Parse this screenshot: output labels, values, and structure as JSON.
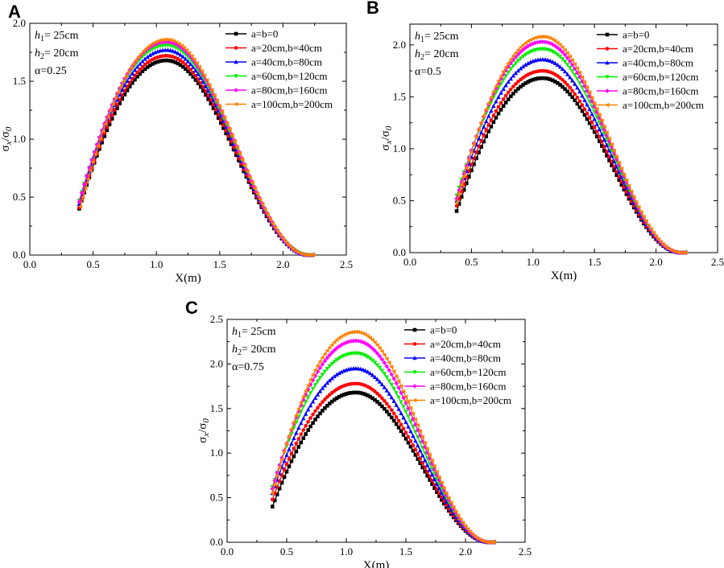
{
  "chart_data": [
    {
      "type": "line",
      "panel_label": "A",
      "xlabel": "X(m)",
      "ylabel_main": "σ",
      "ylabel_sub1": "x",
      "ylabel_mid": "/σ",
      "ylabel_sub2": "0",
      "xlim": [
        0,
        2.5
      ],
      "ylim": [
        0,
        2.0
      ],
      "xticks": [
        "0.0",
        "0.5",
        "1.0",
        "1.5",
        "2.0",
        "2.5"
      ],
      "yticks": [
        "0.0",
        "0.5",
        "1.0",
        "1.5",
        "2.0"
      ],
      "annotations": [
        {
          "var": "h",
          "sub": "1",
          "text": "= 25cm"
        },
        {
          "var": "h",
          "sub": "2",
          "text": "= 20cm"
        },
        {
          "var": "",
          "sub": "",
          "text": "α=0.25"
        }
      ],
      "legend_position": "top-right",
      "series": [
        {
          "name": "a=b=0",
          "color": "#000000",
          "marker": "square",
          "x_start": 0.39,
          "y_start": 0.4,
          "peak": 1.68
        },
        {
          "name": "a=20cm,b=40cm",
          "color": "#ff0000",
          "marker": "circle",
          "x_start": 0.39,
          "y_start": 0.41,
          "peak": 1.72
        },
        {
          "name": "a=40cm,b=80cm",
          "color": "#0000ff",
          "marker": "triangle",
          "x_start": 0.39,
          "y_start": 0.44,
          "peak": 1.77
        },
        {
          "name": "a=60cm,b=120cm",
          "color": "#00ee00",
          "marker": "triangle-down",
          "x_start": 0.39,
          "y_start": 0.47,
          "peak": 1.81
        },
        {
          "name": "a=80cm,b=160cm",
          "color": "#ff00ff",
          "marker": "diamond",
          "x_start": 0.39,
          "y_start": 0.46,
          "peak": 1.84
        },
        {
          "name": "a=100cm,b=200cm",
          "color": "#ff8000",
          "marker": "triangle-left",
          "x_start": 0.4,
          "y_start": 0.42,
          "peak": 1.86
        }
      ]
    },
    {
      "type": "line",
      "panel_label": "B",
      "xlabel": "X(m)",
      "ylabel_main": "σ",
      "ylabel_sub1": "x",
      "ylabel_mid": "/σ",
      "ylabel_sub2": "0",
      "xlim": [
        0,
        2.5
      ],
      "ylim": [
        0,
        2.2
      ],
      "xticks": [
        "0.0",
        "0.5",
        "1.0",
        "1.5",
        "2.0",
        "2.5"
      ],
      "yticks": [
        "0.0",
        "0.5",
        "1.0",
        "1.5",
        "2.0"
      ],
      "annotations": [
        {
          "var": "h",
          "sub": "1",
          "text": "= 25cm"
        },
        {
          "var": "h",
          "sub": "2",
          "text": "= 20cm"
        },
        {
          "var": "",
          "sub": "",
          "text": "α=0.5"
        }
      ],
      "legend_position": "top-right",
      "series": [
        {
          "name": "a=b=0",
          "color": "#000000",
          "marker": "square",
          "x_start": 0.38,
          "y_start": 0.4,
          "peak": 1.68
        },
        {
          "name": "a=20cm,b=40cm",
          "color": "#ff0000",
          "marker": "circle",
          "x_start": 0.38,
          "y_start": 0.45,
          "peak": 1.75
        },
        {
          "name": "a=40cm,b=80cm",
          "color": "#0000ff",
          "marker": "triangle",
          "x_start": 0.38,
          "y_start": 0.5,
          "peak": 1.86
        },
        {
          "name": "a=60cm,b=120cm",
          "color": "#00ee00",
          "marker": "triangle-down",
          "x_start": 0.38,
          "y_start": 0.55,
          "peak": 1.96
        },
        {
          "name": "a=80cm,b=160cm",
          "color": "#ff00ff",
          "marker": "diamond",
          "x_start": 0.38,
          "y_start": 0.52,
          "peak": 2.03
        },
        {
          "name": "a=100cm,b=200cm",
          "color": "#ff8000",
          "marker": "triangle-left",
          "x_start": 0.38,
          "y_start": 0.48,
          "peak": 2.08
        }
      ]
    },
    {
      "type": "line",
      "panel_label": "C",
      "xlabel": "X(m)",
      "ylabel_main": "σ",
      "ylabel_sub1": "x",
      "ylabel_mid": "/σ",
      "ylabel_sub2": "0",
      "xlim": [
        0,
        2.5
      ],
      "ylim": [
        0,
        2.5
      ],
      "xticks": [
        "0.0",
        "0.5",
        "1.0",
        "1.5",
        "2.0",
        "2.5"
      ],
      "yticks": [
        "0.0",
        "0.5",
        "1.0",
        "1.5",
        "2.0",
        "2.5"
      ],
      "annotations": [
        {
          "var": "h",
          "sub": "1",
          "text": "= 25cm"
        },
        {
          "var": "h",
          "sub": "2",
          "text": "= 20cm"
        },
        {
          "var": "",
          "sub": "",
          "text": "α=0.75"
        }
      ],
      "legend_position": "top-right",
      "series": [
        {
          "name": "a=b=0",
          "color": "#000000",
          "marker": "square",
          "x_start": 0.38,
          "y_start": 0.4,
          "peak": 1.68
        },
        {
          "name": "a=20cm,b=40cm",
          "color": "#ff0000",
          "marker": "circle",
          "x_start": 0.38,
          "y_start": 0.48,
          "peak": 1.78
        },
        {
          "name": "a=40cm,b=80cm",
          "color": "#0000ff",
          "marker": "triangle",
          "x_start": 0.38,
          "y_start": 0.55,
          "peak": 1.95
        },
        {
          "name": "a=60cm,b=120cm",
          "color": "#00ee00",
          "marker": "triangle-down",
          "x_start": 0.38,
          "y_start": 0.62,
          "peak": 2.12
        },
        {
          "name": "a=80cm,b=160cm",
          "color": "#ff00ff",
          "marker": "diamond",
          "x_start": 0.38,
          "y_start": 0.6,
          "peak": 2.26
        },
        {
          "name": "a=100cm,b=200cm",
          "color": "#ff8000",
          "marker": "triangle-left",
          "x_start": 0.38,
          "y_start": 0.55,
          "peak": 2.36
        }
      ]
    }
  ]
}
